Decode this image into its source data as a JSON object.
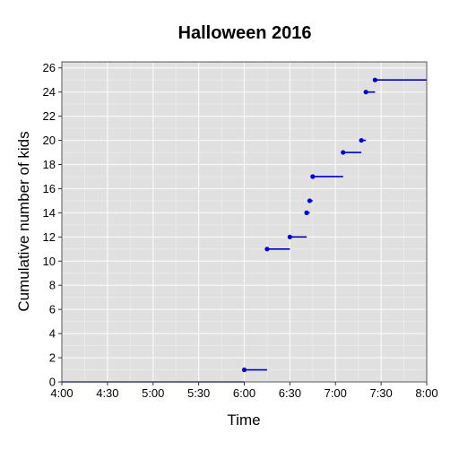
{
  "chart_data": {
    "type": "step",
    "title": "Halloween 2016",
    "xlabel": "Time",
    "ylabel": "Cumulative number of kids",
    "xlim_minutes_after_4pm": [
      0,
      240
    ],
    "ylim": [
      0,
      26.5
    ],
    "x_ticks": [
      "4:00",
      "4:30",
      "5:00",
      "5:30",
      "6:00",
      "6:30",
      "7:00",
      "7:30",
      "8:00"
    ],
    "y_ticks": [
      0,
      2,
      4,
      6,
      8,
      10,
      12,
      14,
      16,
      18,
      20,
      22,
      24,
      26
    ],
    "grid": true,
    "background": "#e0e0e0",
    "series_color": "#0000cc",
    "points": [
      {
        "time": "4:00",
        "count": 0
      },
      {
        "time": "6:00",
        "count": 1
      },
      {
        "time": "6:15",
        "count": 11
      },
      {
        "time": "6:30",
        "count": 12
      },
      {
        "time": "6:41",
        "count": 14
      },
      {
        "time": "6:43",
        "count": 15
      },
      {
        "time": "6:45",
        "count": 17
      },
      {
        "time": "7:05",
        "count": 19
      },
      {
        "time": "7:17",
        "count": 20
      },
      {
        "time": "7:20",
        "count": 24
      },
      {
        "time": "7:26",
        "count": 25
      }
    ],
    "end_time": "8:00"
  }
}
